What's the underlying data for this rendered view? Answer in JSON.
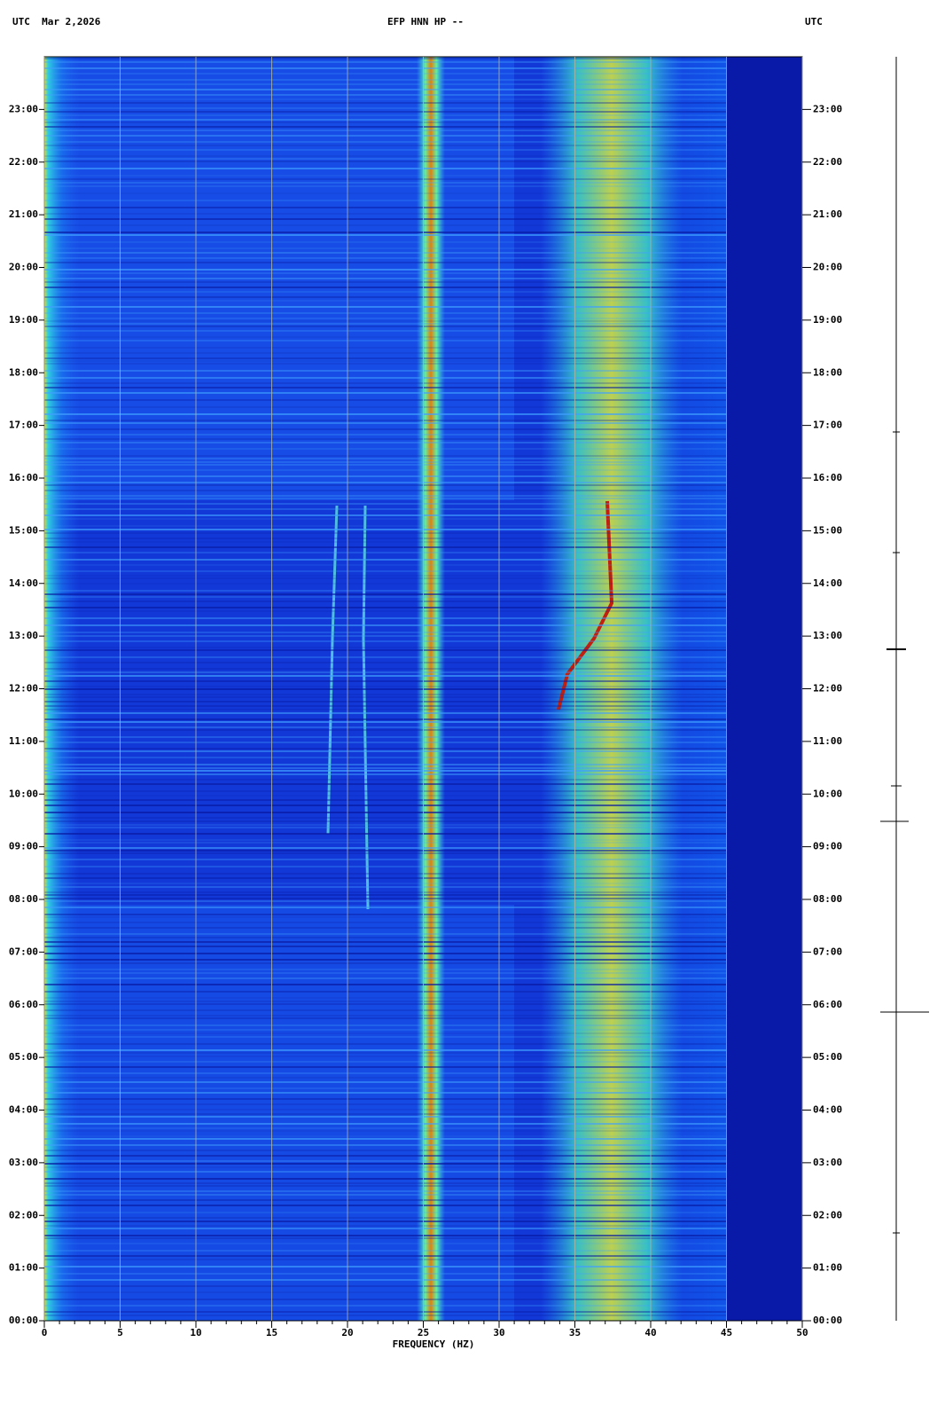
{
  "chart_data": {
    "type": "spectrogram",
    "title": "EFP HNN HP --",
    "title_left": "UTC  Mar 2,2026",
    "title_right": "UTC",
    "xlabel": "FREQUENCY (HZ)",
    "xlim": [
      0,
      50
    ],
    "xticks": [
      0,
      5,
      10,
      15,
      20,
      25,
      30,
      35,
      40,
      45,
      50
    ],
    "ylim": [
      0,
      24
    ],
    "yticks": [
      {
        "value": 0,
        "label": "00:00"
      },
      {
        "value": 1,
        "label": "01:00"
      },
      {
        "value": 2,
        "label": "02:00"
      },
      {
        "value": 3,
        "label": "03:00"
      },
      {
        "value": 4,
        "label": "04:00"
      },
      {
        "value": 5,
        "label": "05:00"
      },
      {
        "value": 6,
        "label": "06:00"
      },
      {
        "value": 7,
        "label": "07:00"
      },
      {
        "value": 8,
        "label": "08:00"
      },
      {
        "value": 9,
        "label": "09:00"
      },
      {
        "value": 10,
        "label": "10:00"
      },
      {
        "value": 11,
        "label": "11:00"
      },
      {
        "value": 12,
        "label": "12:00"
      },
      {
        "value": 13,
        "label": "13:00"
      },
      {
        "value": 14,
        "label": "14:00"
      },
      {
        "value": 15,
        "label": "15:00"
      },
      {
        "value": 16,
        "label": "16:00"
      },
      {
        "value": 17,
        "label": "17:00"
      },
      {
        "value": 18,
        "label": "18:00"
      },
      {
        "value": 19,
        "label": "19:00"
      },
      {
        "value": 20,
        "label": "20:00"
      },
      {
        "value": 21,
        "label": "21:00"
      },
      {
        "value": 22,
        "label": "22:00"
      },
      {
        "value": 23,
        "label": "23:00"
      }
    ],
    "grid": true
  }
}
